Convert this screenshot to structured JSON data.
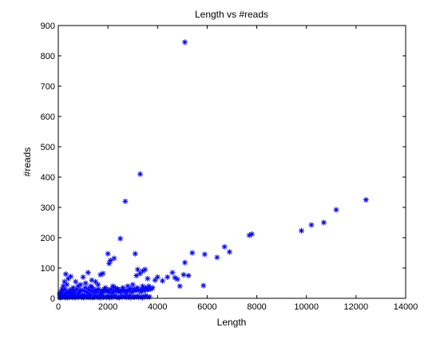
{
  "chart_data": {
    "type": "scatter",
    "title": "Length vs #reads",
    "xlabel": "Length",
    "ylabel": "#reads",
    "xlim": [
      0,
      14000
    ],
    "ylim": [
      0,
      900
    ],
    "xticks": [
      0,
      2000,
      4000,
      6000,
      8000,
      10000,
      12000,
      14000
    ],
    "yticks": [
      0,
      100,
      200,
      300,
      400,
      500,
      600,
      700,
      800,
      900
    ],
    "xtick_labels": [
      "0",
      "2000",
      "4000",
      "6000",
      "8000",
      "10000",
      "12000",
      "14000"
    ],
    "ytick_labels": [
      "0",
      "100",
      "200",
      "300",
      "400",
      "500",
      "600",
      "700",
      "800",
      "900"
    ],
    "marker": "*",
    "marker_color": "#0000ff",
    "grid": false,
    "legend": "none",
    "series": [
      {
        "points": [
          [
            5100,
            845
          ],
          [
            3300,
            410
          ],
          [
            2700,
            320
          ],
          [
            12400,
            325
          ],
          [
            11200,
            292
          ],
          [
            10700,
            250
          ],
          [
            10200,
            242
          ],
          [
            9800,
            223
          ],
          [
            7800,
            212
          ],
          [
            7700,
            208
          ],
          [
            6700,
            170
          ],
          [
            6900,
            153
          ],
          [
            6400,
            135
          ],
          [
            5900,
            145
          ],
          [
            5400,
            150
          ],
          [
            5100,
            118
          ],
          [
            5050,
            78
          ],
          [
            5250,
            75
          ],
          [
            5850,
            42
          ],
          [
            4800,
            63
          ],
          [
            4900,
            40
          ],
          [
            4600,
            85
          ],
          [
            4700,
            68
          ],
          [
            4400,
            70
          ],
          [
            4200,
            58
          ],
          [
            4000,
            70
          ],
          [
            3900,
            60
          ],
          [
            3600,
            65
          ],
          [
            3500,
            95
          ],
          [
            3400,
            90
          ],
          [
            3300,
            82
          ],
          [
            3200,
            95
          ],
          [
            3100,
            147
          ],
          [
            3150,
            75
          ],
          [
            2500,
            197
          ],
          [
            2000,
            147
          ],
          [
            2050,
            115
          ],
          [
            2100,
            125
          ],
          [
            2250,
            132
          ],
          [
            1800,
            82
          ],
          [
            1700,
            78
          ],
          [
            1200,
            85
          ],
          [
            1000,
            70
          ],
          [
            1350,
            60
          ],
          [
            1500,
            55
          ],
          [
            1100,
            50
          ],
          [
            900,
            45
          ],
          [
            700,
            55
          ],
          [
            500,
            72
          ],
          [
            400,
            65
          ],
          [
            300,
            80
          ],
          [
            200,
            40
          ],
          [
            250,
            55
          ],
          [
            350,
            45
          ],
          [
            600,
            35
          ],
          [
            800,
            40
          ],
          [
            1300,
            40
          ],
          [
            1600,
            45
          ],
          [
            1900,
            35
          ],
          [
            2200,
            40
          ],
          [
            2400,
            30
          ],
          [
            2600,
            35
          ],
          [
            2800,
            40
          ],
          [
            3000,
            45
          ],
          [
            3400,
            40
          ],
          [
            3600,
            30
          ],
          [
            3800,
            35
          ],
          [
            150,
            30
          ],
          [
            100,
            20
          ],
          [
            50,
            15
          ],
          [
            120,
            10
          ],
          [
            180,
            25
          ],
          [
            220,
            12
          ],
          [
            280,
            30
          ],
          [
            320,
            18
          ],
          [
            380,
            22
          ],
          [
            420,
            15
          ],
          [
            480,
            28
          ],
          [
            520,
            20
          ],
          [
            560,
            12
          ],
          [
            620,
            25
          ],
          [
            680,
            18
          ],
          [
            740,
            30
          ],
          [
            790,
            15
          ],
          [
            850,
            22
          ],
          [
            920,
            28
          ],
          [
            980,
            12
          ],
          [
            1040,
            25
          ],
          [
            1090,
            35
          ],
          [
            1150,
            20
          ],
          [
            1210,
            30
          ],
          [
            1260,
            15
          ],
          [
            1320,
            25
          ],
          [
            1380,
            35
          ],
          [
            1440,
            18
          ],
          [
            1490,
            28
          ],
          [
            1550,
            22
          ],
          [
            1620,
            30
          ],
          [
            1680,
            15
          ],
          [
            1740,
            25
          ],
          [
            1790,
            20
          ],
          [
            1850,
            30
          ],
          [
            1920,
            22
          ],
          [
            1980,
            28
          ],
          [
            2050,
            20
          ],
          [
            2120,
            30
          ],
          [
            2180,
            18
          ],
          [
            2240,
            25
          ],
          [
            2300,
            35
          ],
          [
            2360,
            22
          ],
          [
            2430,
            28
          ],
          [
            2490,
            20
          ],
          [
            2560,
            25
          ],
          [
            2620,
            30
          ],
          [
            2680,
            22
          ],
          [
            2740,
            18
          ],
          [
            2800,
            28
          ],
          [
            2860,
            25
          ],
          [
            2920,
            32
          ],
          [
            2980,
            20
          ],
          [
            3050,
            30
          ],
          [
            3120,
            25
          ],
          [
            3180,
            35
          ],
          [
            3250,
            28
          ],
          [
            3320,
            22
          ],
          [
            3380,
            30
          ],
          [
            3450,
            25
          ],
          [
            3520,
            35
          ],
          [
            3580,
            28
          ],
          [
            3650,
            40
          ],
          [
            3720,
            30
          ],
          [
            140,
            5
          ],
          [
            240,
            8
          ],
          [
            340,
            6
          ],
          [
            440,
            9
          ],
          [
            540,
            5
          ],
          [
            640,
            8
          ],
          [
            760,
            6
          ],
          [
            880,
            9
          ],
          [
            960,
            5
          ],
          [
            1060,
            8
          ],
          [
            1180,
            6
          ],
          [
            1280,
            9
          ],
          [
            1400,
            5
          ],
          [
            1520,
            8
          ],
          [
            1640,
            6
          ],
          [
            1760,
            9
          ],
          [
            1880,
            5
          ],
          [
            2000,
            8
          ],
          [
            2140,
            6
          ],
          [
            2280,
            9
          ],
          [
            2420,
            5
          ],
          [
            2580,
            8
          ],
          [
            2720,
            6
          ],
          [
            2880,
            9
          ],
          [
            3040,
            5
          ],
          [
            3200,
            8
          ],
          [
            3360,
            6
          ],
          [
            3520,
            9
          ],
          [
            3680,
            5
          ],
          [
            60,
            3
          ],
          [
            90,
            2
          ],
          [
            160,
            4
          ],
          [
            260,
            3
          ],
          [
            360,
            2
          ],
          [
            460,
            4
          ],
          [
            580,
            3
          ],
          [
            700,
            2
          ],
          [
            820,
            4
          ],
          [
            940,
            3
          ],
          [
            1020,
            2
          ],
          [
            1140,
            4
          ],
          [
            1240,
            3
          ],
          [
            1360,
            2
          ],
          [
            1460,
            4
          ],
          [
            1580,
            3
          ],
          [
            1700,
            2
          ],
          [
            1820,
            4
          ],
          [
            1940,
            3
          ],
          [
            2080,
            2
          ],
          [
            2200,
            4
          ],
          [
            2340,
            3
          ],
          [
            2460,
            2
          ],
          [
            2600,
            4
          ],
          [
            2760,
            3
          ],
          [
            2900,
            2
          ],
          [
            3080,
            4
          ],
          [
            3240,
            3
          ],
          [
            3400,
            2
          ],
          [
            3600,
            4
          ]
        ]
      }
    ]
  }
}
